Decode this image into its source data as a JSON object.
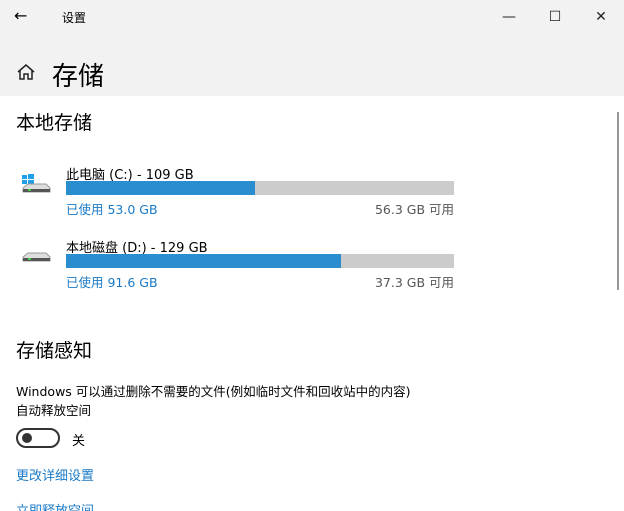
{
  "window": {
    "title": "设置"
  },
  "header": {
    "title": "存储"
  },
  "local": {
    "title": "本地存储",
    "drives": [
      {
        "name": "此电脑 (C:) - 109 GB",
        "used": "已使用 53.0 GB",
        "free": "56.3 GB 可用",
        "fraction": 0.486,
        "icon": "windows-drive-icon"
      },
      {
        "name": "本地磁盘 (D:) - 129 GB",
        "used": "已使用 91.6 GB",
        "free": "37.3 GB 可用",
        "fraction": 0.71,
        "icon": "drive-icon"
      }
    ]
  },
  "sense": {
    "title": "存储感知",
    "desc1": "Windows 可以通过删除不需要的文件(例如临时文件和回收站中的内容)",
    "desc2": "自动释放空间",
    "toggle_label": "关",
    "toggle_on": false,
    "link1": "更改详细设置",
    "link2": "立即释放空间"
  },
  "colors": {
    "accent": "#2a8dd0",
    "link": "#1a7ac7"
  }
}
